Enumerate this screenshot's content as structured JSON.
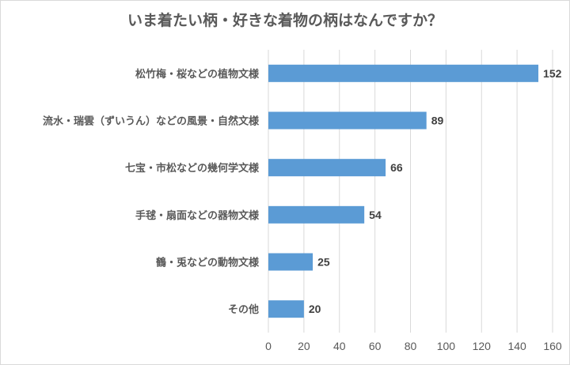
{
  "chart_data": {
    "type": "bar",
    "orientation": "horizontal",
    "title": "いま着たい柄・好きな着物の柄はなんですか？",
    "categories": [
      "松竹梅・桜などの植物文様",
      "流水・瑞雲（ずいうん）などの風景・自然文様",
      "七宝・市松などの幾何学文様",
      "手毬・扇面などの器物文様",
      "鶴・兎などの動物文様",
      "その他"
    ],
    "values": [
      152,
      89,
      66,
      54,
      25,
      20
    ],
    "xlim": [
      0,
      160
    ],
    "xticks": [
      0,
      20,
      40,
      60,
      80,
      100,
      120,
      140,
      160
    ],
    "grid": "vertical",
    "legend": "none",
    "bar_color": "#5b9bd5"
  }
}
